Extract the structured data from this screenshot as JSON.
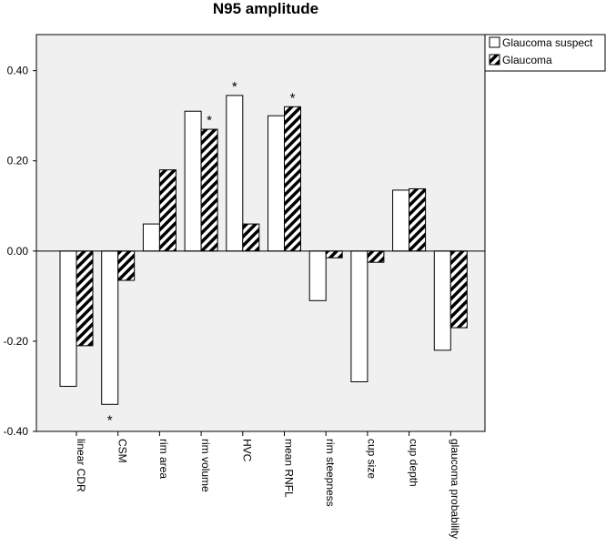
{
  "chart_data": {
    "type": "bar",
    "title": "N95 amplitude",
    "categories": [
      "linear CDR",
      "CSM",
      "rim area",
      "rim volume",
      "HVC",
      "mean RNFL",
      "rim steepness",
      "cup size",
      "cup depth",
      "glaucoma probability"
    ],
    "series": [
      {
        "name": "Glaucoma suspect",
        "values": [
          -0.3,
          -0.34,
          0.06,
          0.31,
          0.345,
          0.3,
          -0.11,
          -0.29,
          0.135,
          -0.22
        ],
        "fill": "#ffffff"
      },
      {
        "name": "Glaucoma",
        "values": [
          -0.21,
          -0.065,
          0.18,
          0.27,
          0.06,
          0.32,
          -0.015,
          -0.025,
          0.138,
          -0.17
        ],
        "fill": "hatched"
      }
    ],
    "significance": [
      {
        "category": "CSM",
        "series": "Glaucoma suspect",
        "label": "*"
      },
      {
        "category": "rim volume",
        "series": "Glaucoma",
        "label": "*"
      },
      {
        "category": "HVC",
        "series": "Glaucoma suspect",
        "label": "*"
      },
      {
        "category": "mean RNFL",
        "series": "Glaucoma",
        "label": "*"
      }
    ],
    "ylim": [
      -0.4,
      0.48
    ],
    "yticks": [
      "-0.40",
      "-0.20",
      "0.00",
      "0.20",
      "0.40"
    ],
    "ytick_values": [
      -0.4,
      -0.2,
      0.0,
      0.2,
      0.4
    ],
    "xlabel": "",
    "ylabel": "",
    "grid": false,
    "legend": "top-right",
    "plot_background": "#f0f0f0"
  }
}
